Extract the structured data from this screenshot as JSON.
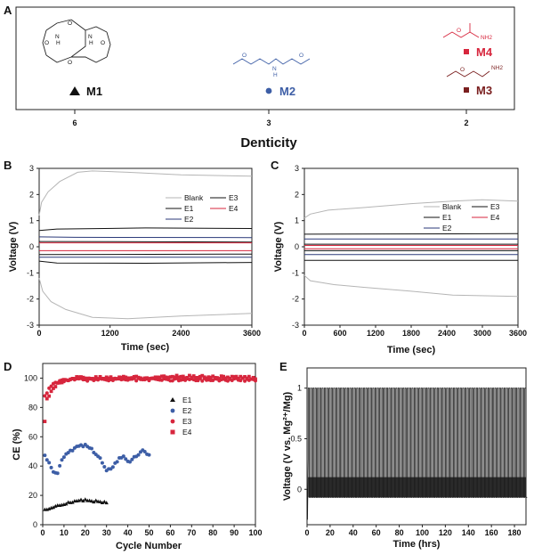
{
  "panel_labels": {
    "a": "A",
    "b": "B",
    "c": "C",
    "d": "D",
    "e": "E"
  },
  "colors": {
    "black": "#111111",
    "gray": "#b5b5b5",
    "navy": "#2b3a7a",
    "red": "#d7263d",
    "blue": "#3d5ea6",
    "dark_red": "#7a1f1f",
    "darkest": "#1a1a1a"
  },
  "chart_data": [
    {
      "panel": "A",
      "type": "scatter",
      "title": "",
      "xlabel": "Denticity",
      "ylabel": "",
      "categories": [
        "6",
        "3",
        "2"
      ],
      "points": [
        {
          "name": "M1",
          "denticity": 6,
          "marker": "triangle",
          "color": "#111111"
        },
        {
          "name": "M2",
          "denticity": 3,
          "marker": "circle",
          "color": "#3d5ea6"
        },
        {
          "name": "M4",
          "denticity": 2,
          "marker": "square",
          "color": "#d7263d"
        },
        {
          "name": "M3",
          "denticity": 2,
          "marker": "square",
          "color": "#7a1f1f"
        }
      ],
      "structure_labels": {
        "nh": "N",
        "h": "H",
        "o": "O",
        "nh2": "NH2"
      }
    },
    {
      "panel": "B",
      "type": "line",
      "xlabel": "Time (sec)",
      "ylabel": "Voltage (V)",
      "xlim": [
        0,
        3600
      ],
      "ylim": [
        -3,
        3
      ],
      "xticks": [
        0,
        1200,
        2400,
        3600
      ],
      "yticks": [
        -3,
        -2,
        -1,
        0,
        1,
        2,
        3
      ],
      "legend": [
        "Blank",
        "E1",
        "E2",
        "E3",
        "E4"
      ],
      "series": [
        {
          "name": "Blank",
          "color": "#b5b5b5",
          "upper": [
            [
              0,
              1.2
            ],
            [
              40,
              1.7
            ],
            [
              150,
              2.1
            ],
            [
              350,
              2.5
            ],
            [
              650,
              2.85
            ],
            [
              900,
              2.9
            ],
            [
              1500,
              2.85
            ],
            [
              2400,
              2.75
            ],
            [
              3600,
              2.7
            ]
          ],
          "lower": [
            [
              0,
              -1.2
            ],
            [
              60,
              -1.7
            ],
            [
              200,
              -2.1
            ],
            [
              450,
              -2.4
            ],
            [
              900,
              -2.7
            ],
            [
              1500,
              -2.75
            ],
            [
              2400,
              -2.65
            ],
            [
              3600,
              -2.55
            ]
          ]
        },
        {
          "name": "E1",
          "color": "#111111",
          "upper": [
            [
              0,
              0.62
            ],
            [
              300,
              0.68
            ],
            [
              1800,
              0.72
            ],
            [
              3600,
              0.7
            ]
          ],
          "lower": [
            [
              0,
              -0.55
            ],
            [
              300,
              -0.62
            ],
            [
              1800,
              -0.63
            ],
            [
              3600,
              -0.6
            ]
          ]
        },
        {
          "name": "E2",
          "color": "#2b3a7a",
          "upper": [
            [
              0,
              0.38
            ],
            [
              600,
              0.36
            ],
            [
              3600,
              0.35
            ]
          ],
          "lower": [
            [
              0,
              -0.4
            ],
            [
              600,
              -0.4
            ],
            [
              3600,
              -0.4
            ]
          ]
        },
        {
          "name": "E3",
          "color": "#111111",
          "upper": [
            [
              0,
              0.2
            ],
            [
              3600,
              0.18
            ]
          ],
          "lower": [
            [
              0,
              -0.3
            ],
            [
              3600,
              -0.28
            ]
          ]
        },
        {
          "name": "E4",
          "color": "#d7263d",
          "upper": [
            [
              0,
              0.15
            ],
            [
              3600,
              0.15
            ]
          ],
          "lower": [
            [
              0,
              -0.15
            ],
            [
              3600,
              -0.15
            ]
          ]
        }
      ]
    },
    {
      "panel": "C",
      "type": "line",
      "xlabel": "Time (sec)",
      "ylabel": "Voltage (V)",
      "xlim": [
        0,
        3600
      ],
      "ylim": [
        -3,
        3
      ],
      "xticks": [
        0,
        600,
        1200,
        1800,
        2400,
        3000,
        3600
      ],
      "yticks": [
        -3,
        -2,
        -1,
        0,
        1,
        2,
        3
      ],
      "legend": [
        "Blank",
        "E1",
        "E2",
        "E3",
        "E4"
      ],
      "series": [
        {
          "name": "Blank",
          "color": "#b5b5b5",
          "upper": [
            [
              0,
              1.1
            ],
            [
              100,
              1.25
            ],
            [
              400,
              1.4
            ],
            [
              1000,
              1.5
            ],
            [
              1800,
              1.65
            ],
            [
              2500,
              1.75
            ],
            [
              3000,
              1.8
            ],
            [
              3600,
              1.75
            ]
          ],
          "lower": [
            [
              0,
              -1.1
            ],
            [
              100,
              -1.3
            ],
            [
              500,
              -1.45
            ],
            [
              1000,
              -1.55
            ],
            [
              1800,
              -1.7
            ],
            [
              2500,
              -1.85
            ],
            [
              3600,
              -1.9
            ]
          ]
        },
        {
          "name": "E1",
          "color": "#111111",
          "upper": [
            [
              0,
              0.48
            ],
            [
              3600,
              0.5
            ]
          ],
          "lower": [
            [
              0,
              -0.52
            ],
            [
              3600,
              -0.52
            ]
          ]
        },
        {
          "name": "E2",
          "color": "#2b3a7a",
          "upper": [
            [
              0,
              0.3
            ],
            [
              3600,
              0.3
            ]
          ],
          "lower": [
            [
              0,
              -0.3
            ],
            [
              3600,
              -0.3
            ]
          ]
        },
        {
          "name": "E3",
          "color": "#111111",
          "upper": [
            [
              0,
              0.1
            ],
            [
              3600,
              0.1
            ]
          ],
          "lower": [
            [
              0,
              -0.15
            ],
            [
              3600,
              -0.15
            ]
          ]
        },
        {
          "name": "E4",
          "color": "#d7263d",
          "upper": [
            [
              0,
              0.05
            ],
            [
              3600,
              0.05
            ]
          ],
          "lower": [
            [
              0,
              -0.08
            ],
            [
              3600,
              -0.08
            ]
          ]
        }
      ]
    },
    {
      "panel": "D",
      "type": "scatter",
      "xlabel": "Cycle Number",
      "ylabel": "CE (%)",
      "xlim": [
        0,
        100
      ],
      "ylim": [
        0,
        110
      ],
      "xticks": [
        0,
        10,
        20,
        30,
        40,
        50,
        60,
        70,
        80,
        90,
        100
      ],
      "yticks": [
        0,
        20,
        40,
        60,
        80,
        100
      ],
      "legend": [
        "E1",
        "E2",
        "E3",
        "E4"
      ],
      "series": [
        {
          "name": "E1",
          "color": "#111111",
          "marker": "triangle",
          "cycles": [
            1,
            30
          ],
          "anchors": [
            [
              1,
              10
            ],
            [
              5,
              12
            ],
            [
              10,
              14
            ],
            [
              15,
              16
            ],
            [
              20,
              17
            ],
            [
              25,
              16
            ],
            [
              30,
              15
            ]
          ]
        },
        {
          "name": "E2",
          "color": "#3d5ea6",
          "marker": "circle",
          "cycles": [
            1,
            50
          ],
          "anchors": [
            [
              1,
              48
            ],
            [
              4,
              38
            ],
            [
              7,
              35
            ],
            [
              9,
              45
            ],
            [
              12,
              50
            ],
            [
              16,
              53
            ],
            [
              20,
              54
            ],
            [
              24,
              50
            ],
            [
              27,
              45
            ],
            [
              30,
              36
            ],
            [
              33,
              40
            ],
            [
              36,
              45
            ],
            [
              38,
              47
            ],
            [
              41,
              42
            ],
            [
              44,
              47
            ],
            [
              47,
              50
            ],
            [
              50,
              48
            ]
          ]
        },
        {
          "name": "E3",
          "color": "#d7263d",
          "marker": "circle",
          "cycles": [
            1,
            100
          ],
          "anchors": [
            [
              1,
              88
            ],
            [
              3,
              93
            ],
            [
              5,
              96
            ],
            [
              8,
              98
            ],
            [
              12,
              99
            ],
            [
              20,
              99
            ],
            [
              100,
              99
            ]
          ]
        },
        {
          "name": "E4",
          "color": "#d7263d",
          "marker": "square",
          "cycles": [
            1,
            100
          ],
          "anchors": [
            [
              1,
              70
            ],
            [
              2,
              85
            ],
            [
              4,
              92
            ],
            [
              6,
              95
            ],
            [
              10,
              98
            ],
            [
              15,
              100
            ],
            [
              30,
              100
            ],
            [
              70,
              101
            ],
            [
              100,
              100
            ]
          ]
        }
      ]
    },
    {
      "panel": "E",
      "type": "line",
      "xlabel": "Time (hrs)",
      "ylabel": "Voltage (V vs. Mg²⁺/Mg)",
      "xlim": [
        0,
        190
      ],
      "ylim": [
        -0.35,
        1.2
      ],
      "xticks": [
        0,
        20,
        40,
        60,
        80,
        100,
        120,
        140,
        160,
        180
      ],
      "yticks": [
        0,
        0.5,
        1
      ],
      "cycle_high": 1.0,
      "cycle_low": -0.08,
      "cycle_period_hrs": 2,
      "initial_dip": -0.3
    }
  ]
}
